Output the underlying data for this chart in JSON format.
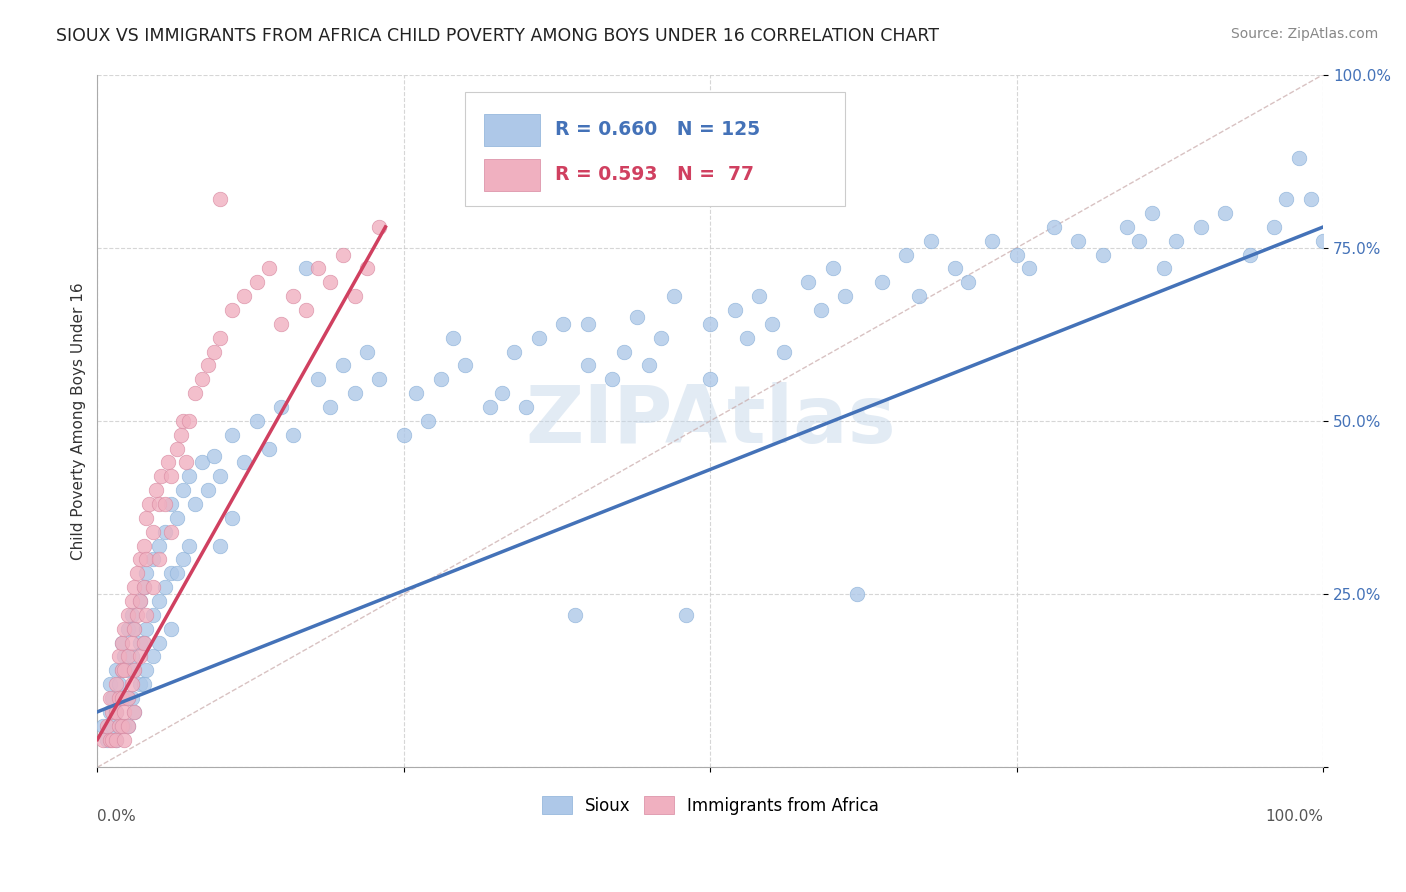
{
  "title": "SIOUX VS IMMIGRANTS FROM AFRICA CHILD POVERTY AMONG BOYS UNDER 16 CORRELATION CHART",
  "source": "Source: ZipAtlas.com",
  "ylabel": "Child Poverty Among Boys Under 16",
  "xlim": [
    0.0,
    1.0
  ],
  "ylim": [
    0.0,
    1.0
  ],
  "sioux_R": 0.66,
  "sioux_N": 125,
  "africa_R": 0.593,
  "africa_N": 77,
  "sioux_color": "#aec8e8",
  "africa_color": "#f0b0c0",
  "sioux_line_color": "#4472b8",
  "africa_line_color": "#d04060",
  "diagonal_color": "#c8a8a8",
  "watermark_color": "#c0d4e8",
  "watermark_alpha": 0.45,
  "background_color": "#ffffff",
  "grid_color": "#cccccc",
  "sioux_points": [
    [
      0.005,
      0.06
    ],
    [
      0.008,
      0.04
    ],
    [
      0.01,
      0.08
    ],
    [
      0.01,
      0.12
    ],
    [
      0.012,
      0.1
    ],
    [
      0.012,
      0.06
    ],
    [
      0.015,
      0.14
    ],
    [
      0.015,
      0.08
    ],
    [
      0.015,
      0.04
    ],
    [
      0.018,
      0.12
    ],
    [
      0.018,
      0.06
    ],
    [
      0.02,
      0.18
    ],
    [
      0.02,
      0.14
    ],
    [
      0.02,
      0.1
    ],
    [
      0.02,
      0.06
    ],
    [
      0.022,
      0.16
    ],
    [
      0.022,
      0.1
    ],
    [
      0.022,
      0.06
    ],
    [
      0.025,
      0.2
    ],
    [
      0.025,
      0.14
    ],
    [
      0.025,
      0.1
    ],
    [
      0.025,
      0.06
    ],
    [
      0.028,
      0.22
    ],
    [
      0.028,
      0.16
    ],
    [
      0.028,
      0.1
    ],
    [
      0.03,
      0.2
    ],
    [
      0.03,
      0.14
    ],
    [
      0.03,
      0.08
    ],
    [
      0.035,
      0.24
    ],
    [
      0.035,
      0.18
    ],
    [
      0.035,
      0.12
    ],
    [
      0.038,
      0.26
    ],
    [
      0.038,
      0.18
    ],
    [
      0.038,
      0.12
    ],
    [
      0.04,
      0.28
    ],
    [
      0.04,
      0.2
    ],
    [
      0.04,
      0.14
    ],
    [
      0.045,
      0.3
    ],
    [
      0.045,
      0.22
    ],
    [
      0.045,
      0.16
    ],
    [
      0.05,
      0.32
    ],
    [
      0.05,
      0.24
    ],
    [
      0.05,
      0.18
    ],
    [
      0.055,
      0.34
    ],
    [
      0.055,
      0.26
    ],
    [
      0.06,
      0.38
    ],
    [
      0.06,
      0.28
    ],
    [
      0.06,
      0.2
    ],
    [
      0.065,
      0.36
    ],
    [
      0.065,
      0.28
    ],
    [
      0.07,
      0.4
    ],
    [
      0.07,
      0.3
    ],
    [
      0.075,
      0.42
    ],
    [
      0.075,
      0.32
    ],
    [
      0.08,
      0.38
    ],
    [
      0.085,
      0.44
    ],
    [
      0.09,
      0.4
    ],
    [
      0.095,
      0.45
    ],
    [
      0.1,
      0.42
    ],
    [
      0.1,
      0.32
    ],
    [
      0.11,
      0.48
    ],
    [
      0.11,
      0.36
    ],
    [
      0.12,
      0.44
    ],
    [
      0.13,
      0.5
    ],
    [
      0.14,
      0.46
    ],
    [
      0.15,
      0.52
    ],
    [
      0.16,
      0.48
    ],
    [
      0.17,
      0.72
    ],
    [
      0.18,
      0.56
    ],
    [
      0.19,
      0.52
    ],
    [
      0.2,
      0.58
    ],
    [
      0.21,
      0.54
    ],
    [
      0.22,
      0.6
    ],
    [
      0.23,
      0.56
    ],
    [
      0.25,
      0.48
    ],
    [
      0.26,
      0.54
    ],
    [
      0.27,
      0.5
    ],
    [
      0.28,
      0.56
    ],
    [
      0.29,
      0.62
    ],
    [
      0.3,
      0.58
    ],
    [
      0.32,
      0.52
    ],
    [
      0.33,
      0.54
    ],
    [
      0.34,
      0.6
    ],
    [
      0.35,
      0.52
    ],
    [
      0.36,
      0.62
    ],
    [
      0.38,
      0.64
    ],
    [
      0.39,
      0.22
    ],
    [
      0.4,
      0.64
    ],
    [
      0.4,
      0.58
    ],
    [
      0.42,
      0.56
    ],
    [
      0.43,
      0.6
    ],
    [
      0.44,
      0.65
    ],
    [
      0.45,
      0.58
    ],
    [
      0.46,
      0.62
    ],
    [
      0.47,
      0.68
    ],
    [
      0.48,
      0.22
    ],
    [
      0.5,
      0.64
    ],
    [
      0.5,
      0.56
    ],
    [
      0.52,
      0.66
    ],
    [
      0.53,
      0.62
    ],
    [
      0.54,
      0.68
    ],
    [
      0.55,
      0.64
    ],
    [
      0.56,
      0.6
    ],
    [
      0.58,
      0.7
    ],
    [
      0.59,
      0.66
    ],
    [
      0.6,
      0.72
    ],
    [
      0.61,
      0.68
    ],
    [
      0.62,
      0.25
    ],
    [
      0.64,
      0.7
    ],
    [
      0.66,
      0.74
    ],
    [
      0.67,
      0.68
    ],
    [
      0.68,
      0.76
    ],
    [
      0.7,
      0.72
    ],
    [
      0.71,
      0.7
    ],
    [
      0.73,
      0.76
    ],
    [
      0.75,
      0.74
    ],
    [
      0.76,
      0.72
    ],
    [
      0.78,
      0.78
    ],
    [
      0.8,
      0.76
    ],
    [
      0.82,
      0.74
    ],
    [
      0.84,
      0.78
    ],
    [
      0.85,
      0.76
    ],
    [
      0.86,
      0.8
    ],
    [
      0.87,
      0.72
    ],
    [
      0.88,
      0.76
    ],
    [
      0.9,
      0.78
    ],
    [
      0.92,
      0.8
    ],
    [
      0.94,
      0.74
    ],
    [
      0.96,
      0.78
    ],
    [
      0.97,
      0.82
    ],
    [
      0.98,
      0.88
    ],
    [
      0.99,
      0.82
    ],
    [
      1.0,
      0.76
    ]
  ],
  "africa_points": [
    [
      0.005,
      0.04
    ],
    [
      0.008,
      0.06
    ],
    [
      0.01,
      0.1
    ],
    [
      0.01,
      0.04
    ],
    [
      0.012,
      0.08
    ],
    [
      0.012,
      0.04
    ],
    [
      0.015,
      0.12
    ],
    [
      0.015,
      0.08
    ],
    [
      0.015,
      0.04
    ],
    [
      0.018,
      0.16
    ],
    [
      0.018,
      0.1
    ],
    [
      0.018,
      0.06
    ],
    [
      0.02,
      0.18
    ],
    [
      0.02,
      0.14
    ],
    [
      0.02,
      0.1
    ],
    [
      0.02,
      0.06
    ],
    [
      0.022,
      0.2
    ],
    [
      0.022,
      0.14
    ],
    [
      0.022,
      0.08
    ],
    [
      0.022,
      0.04
    ],
    [
      0.025,
      0.22
    ],
    [
      0.025,
      0.16
    ],
    [
      0.025,
      0.1
    ],
    [
      0.025,
      0.06
    ],
    [
      0.028,
      0.24
    ],
    [
      0.028,
      0.18
    ],
    [
      0.028,
      0.12
    ],
    [
      0.03,
      0.26
    ],
    [
      0.03,
      0.2
    ],
    [
      0.03,
      0.14
    ],
    [
      0.03,
      0.08
    ],
    [
      0.032,
      0.28
    ],
    [
      0.032,
      0.22
    ],
    [
      0.035,
      0.3
    ],
    [
      0.035,
      0.24
    ],
    [
      0.035,
      0.16
    ],
    [
      0.038,
      0.32
    ],
    [
      0.038,
      0.26
    ],
    [
      0.038,
      0.18
    ],
    [
      0.04,
      0.36
    ],
    [
      0.04,
      0.3
    ],
    [
      0.04,
      0.22
    ],
    [
      0.042,
      0.38
    ],
    [
      0.045,
      0.34
    ],
    [
      0.045,
      0.26
    ],
    [
      0.048,
      0.4
    ],
    [
      0.05,
      0.38
    ],
    [
      0.05,
      0.3
    ],
    [
      0.052,
      0.42
    ],
    [
      0.055,
      0.38
    ],
    [
      0.058,
      0.44
    ],
    [
      0.06,
      0.42
    ],
    [
      0.06,
      0.34
    ],
    [
      0.065,
      0.46
    ],
    [
      0.068,
      0.48
    ],
    [
      0.07,
      0.5
    ],
    [
      0.072,
      0.44
    ],
    [
      0.075,
      0.5
    ],
    [
      0.08,
      0.54
    ],
    [
      0.085,
      0.56
    ],
    [
      0.09,
      0.58
    ],
    [
      0.095,
      0.6
    ],
    [
      0.1,
      0.62
    ],
    [
      0.11,
      0.66
    ],
    [
      0.12,
      0.68
    ],
    [
      0.13,
      0.7
    ],
    [
      0.14,
      0.72
    ],
    [
      0.15,
      0.64
    ],
    [
      0.16,
      0.68
    ],
    [
      0.17,
      0.66
    ],
    [
      0.18,
      0.72
    ],
    [
      0.19,
      0.7
    ],
    [
      0.2,
      0.74
    ],
    [
      0.21,
      0.68
    ],
    [
      0.22,
      0.72
    ],
    [
      0.23,
      0.78
    ],
    [
      0.1,
      0.82
    ]
  ],
  "sioux_line": {
    "x0": 0.0,
    "y0": 0.08,
    "x1": 1.0,
    "y1": 0.78
  },
  "africa_line": {
    "x0": 0.0,
    "y0": 0.04,
    "x1": 0.235,
    "y1": 0.78
  }
}
